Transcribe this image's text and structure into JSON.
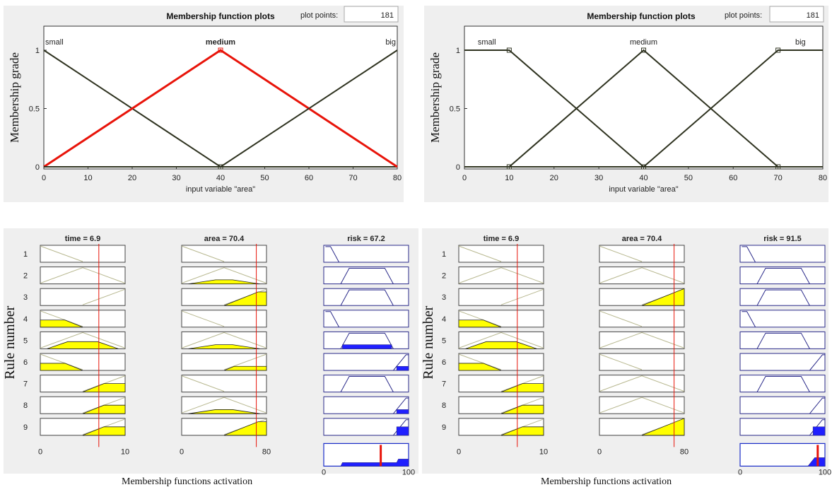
{
  "chart_data": [
    {
      "type": "line",
      "title": "Membership function plots",
      "plot_points_label": "plot points:",
      "plot_points_value": "181",
      "xlabel": "input variable \"area\"",
      "ylabel": "Membership grade",
      "xlim": [
        0,
        80
      ],
      "ylim": [
        0,
        1
      ],
      "xticks": [
        "0",
        "10",
        "20",
        "30",
        "40",
        "50",
        "60",
        "70",
        "80"
      ],
      "yticks": [
        "0",
        "0.5",
        "1"
      ],
      "series": [
        {
          "name": "small",
          "x": [
            0,
            40,
            80
          ],
          "y": [
            1,
            0,
            0
          ],
          "color": "#2f3320",
          "selected": false
        },
        {
          "name": "medium",
          "x": [
            0,
            40,
            80
          ],
          "y": [
            0,
            1,
            0
          ],
          "color": "#e8140a",
          "selected": true
        },
        {
          "name": "big",
          "x": [
            0,
            40,
            80
          ],
          "y": [
            0,
            0,
            1
          ],
          "color": "#2f3320",
          "selected": false
        }
      ]
    },
    {
      "type": "line",
      "title": "Membership function plots",
      "plot_points_label": "plot points:",
      "plot_points_value": "181",
      "xlabel": "input variable \"area\"",
      "ylabel": "Membership grade",
      "xlim": [
        0,
        80
      ],
      "ylim": [
        0,
        1
      ],
      "xticks": [
        "0",
        "10",
        "20",
        "30",
        "40",
        "50",
        "60",
        "70",
        "80"
      ],
      "yticks": [
        "0",
        "0.5",
        "1"
      ],
      "series": [
        {
          "name": "small",
          "x": [
            0,
            10,
            40,
            80
          ],
          "y": [
            1,
            1,
            0,
            0
          ],
          "color": "#2f3320",
          "selected": false
        },
        {
          "name": "medium",
          "x": [
            0,
            10,
            40,
            70,
            80
          ],
          "y": [
            0,
            0,
            1,
            0,
            0
          ],
          "color": "#2f3320",
          "selected": false
        },
        {
          "name": "big",
          "x": [
            0,
            40,
            70,
            80
          ],
          "y": [
            0,
            0,
            1,
            1
          ],
          "color": "#2f3320",
          "selected": false
        }
      ]
    },
    {
      "type": "rule-viewer",
      "ylabel": "Rule number",
      "caption": "Membership functions activation",
      "rule_numbers": [
        "1",
        "2",
        "3",
        "4",
        "5",
        "6",
        "7",
        "8",
        "9"
      ],
      "columns": [
        {
          "label": "time = 6.9",
          "kind": "input",
          "min_label": "0",
          "max_label": "10",
          "range": [
            0,
            10
          ],
          "value": 6.9,
          "shapes": [
            "L",
            "M",
            "R",
            "L",
            "M",
            "L",
            "R",
            "R",
            "R"
          ],
          "degrees": [
            0.0,
            0.0,
            0.0,
            0.42,
            0.42,
            0.42,
            0.5,
            0.5,
            0.5
          ]
        },
        {
          "label": "area = 70.4",
          "kind": "input",
          "min_label": "0",
          "max_label": "80",
          "range": [
            0,
            80
          ],
          "value": 70.4,
          "shapes": [
            "L",
            "M",
            "R",
            "L",
            "M",
            "R",
            "L",
            "M",
            "R"
          ],
          "degrees": [
            0.0,
            0.24,
            0.8,
            0.0,
            0.24,
            0.24,
            0.0,
            0.24,
            0.8
          ]
        },
        {
          "label": "risk = 67.2",
          "kind": "output",
          "min_label": "0",
          "max_label": "100",
          "range": [
            0,
            100
          ],
          "value": 67.2,
          "shapes": [
            "L",
            "M",
            "M",
            "L",
            "M",
            "H",
            "M",
            "H",
            "H"
          ],
          "degrees": [
            0.0,
            0.0,
            0.0,
            0.0,
            0.24,
            0.24,
            0.0,
            0.24,
            0.5
          ]
        }
      ]
    },
    {
      "type": "rule-viewer",
      "ylabel": "Rule number",
      "caption": "Membership functions activation",
      "rule_numbers": [
        "1",
        "2",
        "3",
        "4",
        "5",
        "6",
        "7",
        "8",
        "9"
      ],
      "columns": [
        {
          "label": "time = 6.9",
          "kind": "input",
          "min_label": "0",
          "max_label": "10",
          "range": [
            0,
            10
          ],
          "value": 6.9,
          "shapes": [
            "L",
            "M",
            "R",
            "L",
            "M",
            "L",
            "R",
            "R",
            "R"
          ],
          "degrees": [
            0.0,
            0.0,
            0.0,
            0.42,
            0.42,
            0.42,
            0.5,
            0.5,
            0.5
          ]
        },
        {
          "label": "area = 70.4",
          "kind": "input",
          "min_label": "0",
          "max_label": "80",
          "range": [
            0,
            80
          ],
          "value": 70.4,
          "shapes": [
            "L",
            "M",
            "R",
            "L",
            "M",
            "L",
            "M",
            "M",
            "R"
          ],
          "degrees": [
            0.0,
            0.0,
            1.0,
            0.0,
            0.0,
            0.0,
            0.0,
            0.0,
            1.0
          ]
        },
        {
          "label": "risk = 91.5",
          "kind": "output",
          "min_label": "0",
          "max_label": "100",
          "range": [
            0,
            100
          ],
          "value": 91.5,
          "shapes": [
            "L",
            "M",
            "M",
            "L",
            "M",
            "H",
            "M",
            "H",
            "H"
          ],
          "degrees": [
            0.0,
            0.0,
            0.0,
            0.0,
            0.0,
            0.0,
            0.0,
            0.0,
            0.5
          ]
        }
      ]
    }
  ],
  "colors": {
    "panel_bg": "#efefef",
    "mf_line": "#2f3320",
    "selected_mf": "#e8140a",
    "input_fill": "#ffff00",
    "input_line": "#b8b890",
    "output_line": "#2a2a8a",
    "output_fill": "#2020ff",
    "cursor": "#e8140a",
    "output_tick": "#1a2cc8"
  }
}
